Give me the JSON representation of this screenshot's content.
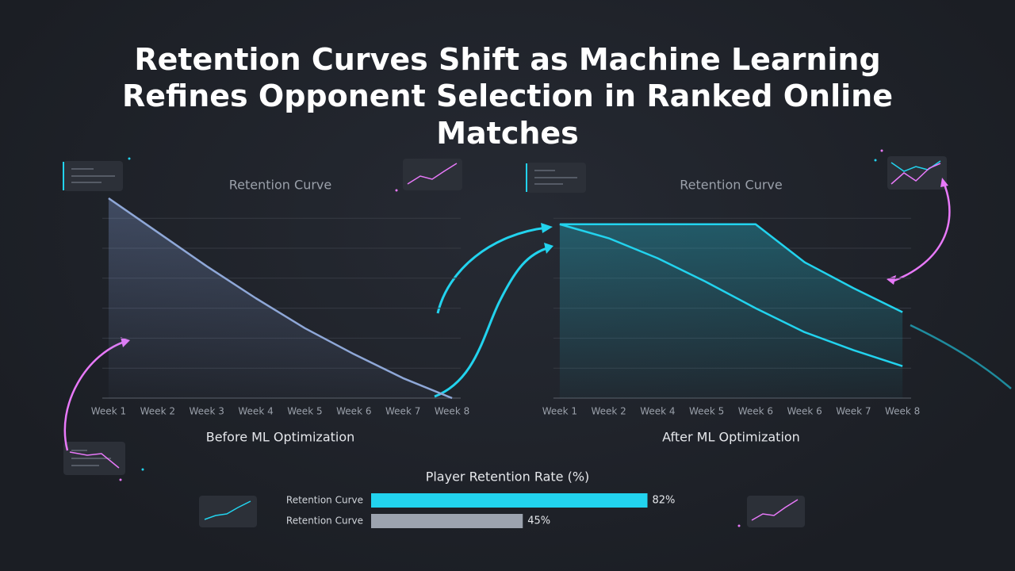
{
  "header": {
    "title": "Retention Curves Shift as Machine Learning Refines Opponent Selection in Ranked Online Matches"
  },
  "chart_data": [
    {
      "type": "line",
      "title": "Retention Curve",
      "xlabel": "Before ML Optimization",
      "categories": [
        "Week 1",
        "Week 2",
        "Week 3",
        "Week 4",
        "Week 5",
        "Week 6",
        "Week 7",
        "Week 8"
      ],
      "series": [
        {
          "color": "#8fa8d8",
          "values": [
            100,
            83,
            66,
            50,
            35,
            22,
            10,
            0
          ]
        }
      ],
      "ylim": [
        0,
        100
      ],
      "yticks": [
        0,
        15,
        30,
        45,
        60,
        75,
        90
      ],
      "grid": true
    },
    {
      "type": "line",
      "title": "Retention Curve",
      "xlabel": "After ML Optimization",
      "categories": [
        "Week 1",
        "Week 2",
        "Week 4",
        "Week 5",
        "Week 6",
        "Week 6",
        "Week 7",
        "Week 8"
      ],
      "series": [
        {
          "color": "#22d3ee",
          "values": [
            87,
            87,
            87,
            87,
            87,
            68,
            55,
            43
          ]
        },
        {
          "color": "#22d3ee",
          "values": [
            87,
            80,
            70,
            58,
            45,
            33,
            24,
            16
          ]
        }
      ],
      "ylim": [
        0,
        100
      ],
      "yticks": [
        0,
        15,
        30,
        45,
        60,
        75,
        90
      ],
      "grid": true
    },
    {
      "type": "hbar",
      "title": "Player Retention Rate (%)",
      "categories": [
        "Retention Curve",
        "Retention Curve"
      ],
      "values": [
        82,
        45
      ],
      "value_labels": [
        "82%",
        "45%"
      ],
      "colors": [
        "#22d3ee",
        "#9ca3af"
      ],
      "xlim": [
        0,
        100
      ]
    }
  ]
}
